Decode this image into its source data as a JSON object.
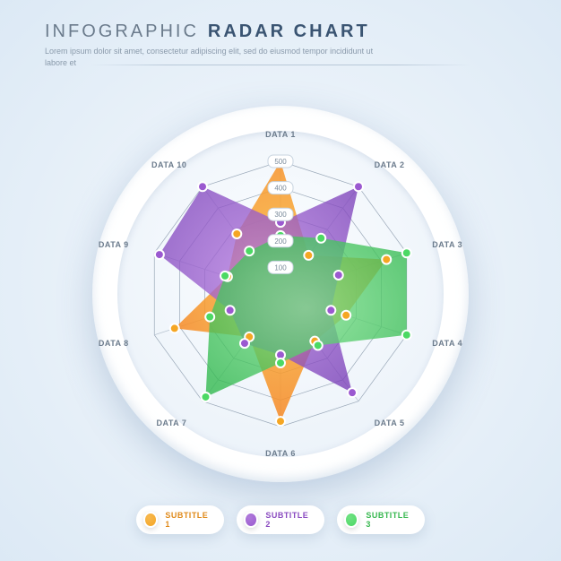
{
  "header": {
    "title_pre": "INFOGRAPHIC",
    "title_post": "RADAR CHART",
    "subtitle": "Lorem ipsum dolor sit amet, consectetur adipiscing elit, sed do eiusmod tempor incididunt ut labore et"
  },
  "chart": {
    "type": "radar",
    "axes_count": 10,
    "axes_labels": [
      "DATA 1",
      "DATA 2",
      "DATA 3",
      "DATA 4",
      "DATA 5",
      "DATA 6",
      "DATA 7",
      "DATA 8",
      "DATA 9",
      "DATA 10"
    ],
    "max_value": 500,
    "tick_values": [
      100,
      200,
      300,
      400,
      500
    ],
    "grid_color": "#9aa8b8",
    "axis_line_color": "#b8c4d0",
    "background_outer": "#ffffff",
    "background_inner_from": "#fbfdff",
    "background_inner_to": "#e8f0f8",
    "series": [
      {
        "name": "SUBTITLE 1",
        "color": "#f5a623",
        "gradient_from": "#fbbf3c",
        "gradient_to": "#f57c1f",
        "fill_opacity": 0.85,
        "values": [
          500,
          180,
          420,
          260,
          220,
          480,
          200,
          420,
          210,
          280
        ]
      },
      {
        "name": "SUBTITLE 2",
        "color": "#9b59d0",
        "gradient_from": "#b57ae0",
        "gradient_to": "#7a3fb8",
        "fill_opacity": 0.78,
        "values": [
          270,
          500,
          230,
          200,
          460,
          230,
          230,
          200,
          480,
          500
        ]
      },
      {
        "name": "SUBTITLE 3",
        "color": "#4cd964",
        "gradient_from": "#7be08a",
        "gradient_to": "#2fb84c",
        "fill_opacity": 0.78,
        "values": [
          220,
          260,
          500,
          500,
          240,
          260,
          480,
          280,
          220,
          200
        ]
      }
    ],
    "marker_radius": 5,
    "marker_stroke": "#ffffff",
    "marker_stroke_width": 2
  },
  "legend": {
    "items": [
      {
        "label": "SUBTITLE 1",
        "color": "#f5a623",
        "text_color": "#e08a1a"
      },
      {
        "label": "SUBTITLE 2",
        "color": "#9b59d0",
        "text_color": "#8a4bc0"
      },
      {
        "label": "SUBTITLE 3",
        "color": "#4cd964",
        "text_color": "#38b850"
      }
    ]
  }
}
